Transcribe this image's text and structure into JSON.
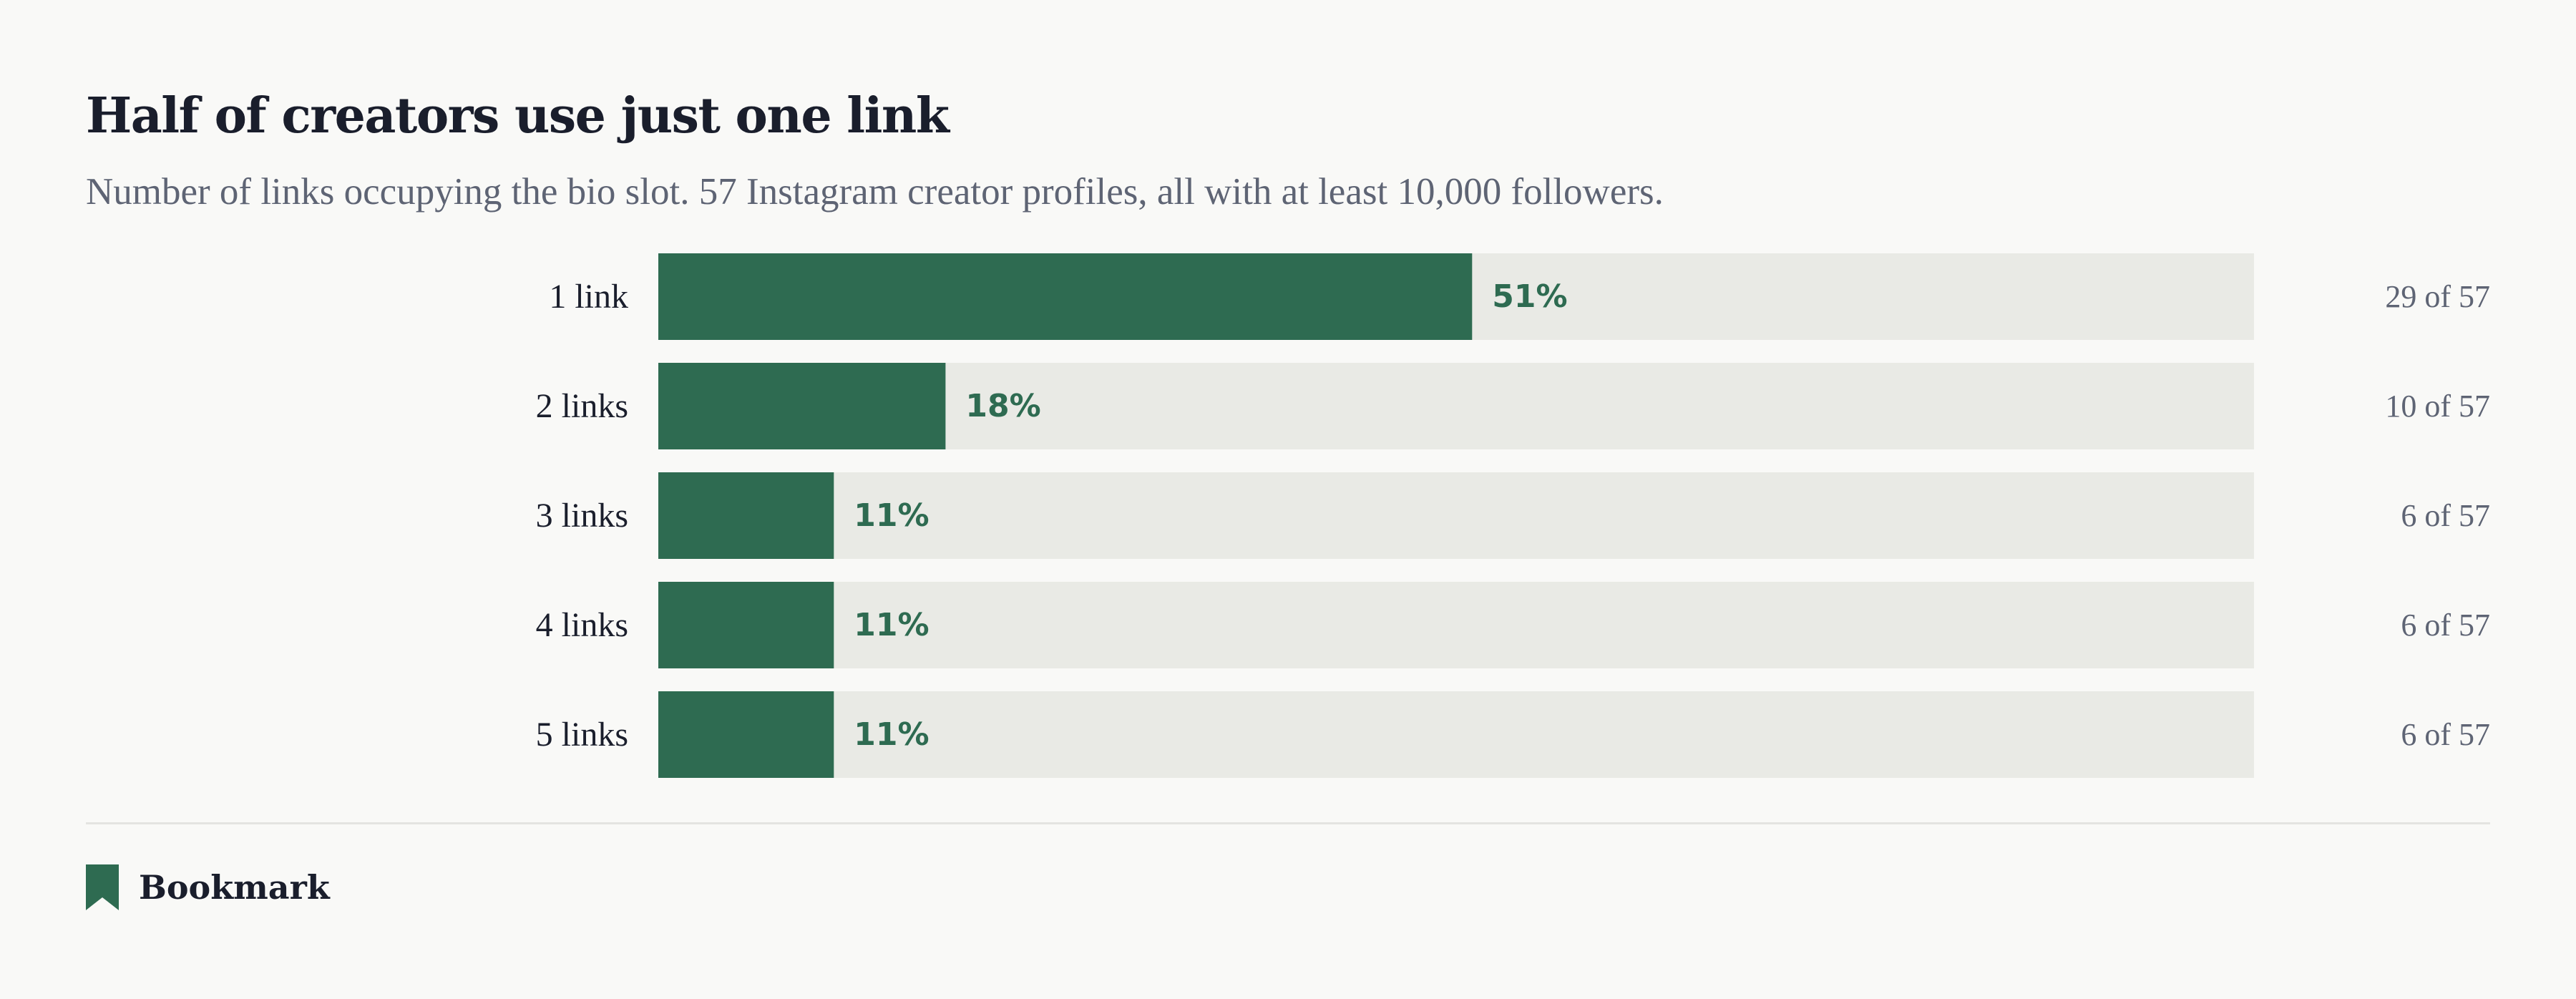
{
  "header": {
    "title": "Half of creators use just one link",
    "subtitle": "Number of links occupying the bio slot. 57 Instagram creator profiles, all with at least 10,000 followers."
  },
  "chart_data": {
    "type": "bar",
    "orientation": "horizontal",
    "title": "Half of creators use just one link",
    "subtitle": "Number of links occupying the bio slot. 57 Instagram creator profiles, all with at least 10,000 followers.",
    "categories": [
      "1 link",
      "2 links",
      "3 links",
      "4 links",
      "5 links"
    ],
    "values": [
      51,
      18,
      11,
      11,
      11
    ],
    "value_labels": [
      "51%",
      "18%",
      "11%",
      "11%",
      "11%"
    ],
    "counts": [
      29,
      10,
      6,
      6,
      6
    ],
    "count_labels": [
      "29 of 57",
      "10 of 57",
      "6 of 57",
      "6 of 57",
      "6 of 57"
    ],
    "total": 57,
    "xlim": [
      0,
      100
    ],
    "grid": false,
    "legend": "none"
  },
  "colors": {
    "bar_fill": "#2e6b51",
    "bar_track": "#e9eae5",
    "value_label": "#2e6b51",
    "category_label": "#1a1e2c",
    "count_label": "#5e6474",
    "title": "#1a1e2c",
    "subtitle": "#5e6474"
  },
  "footer": {
    "brand_icon": "bookmark-icon",
    "brand_label": "Bookmark"
  }
}
